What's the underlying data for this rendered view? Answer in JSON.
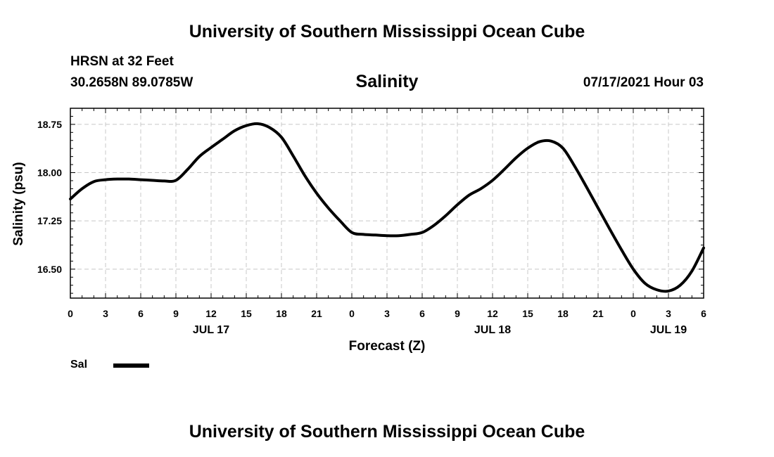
{
  "header": {
    "title": "University of Southern Mississippi Ocean Cube",
    "station": "HRSN at 32 Feet",
    "coordinates": "30.2658N  89.0785W",
    "plot_title": "Salinity",
    "timestamp": "07/17/2021 Hour 03"
  },
  "footer": {
    "title": "University of Southern Mississippi Ocean Cube"
  },
  "legend": {
    "label": "Sal"
  },
  "chart_data": {
    "type": "line",
    "title": "Salinity",
    "xlabel": "Forecast (Z)",
    "ylabel": "Salinity (psu)",
    "xlim": [
      0,
      54
    ],
    "ylim": [
      16.05,
      19.0
    ],
    "y_ticks": [
      16.5,
      17.25,
      18.0,
      18.75
    ],
    "y_tick_labels": [
      "16.50",
      "17.25",
      "18.00",
      "18.75"
    ],
    "x_ticks": [
      0,
      3,
      6,
      9,
      12,
      15,
      18,
      21,
      24,
      27,
      30,
      33,
      36,
      39,
      42,
      45,
      48,
      51,
      54
    ],
    "x_tick_labels": [
      "0",
      "3",
      "6",
      "9",
      "12",
      "15",
      "18",
      "21",
      "0",
      "3",
      "6",
      "9",
      "12",
      "15",
      "18",
      "21",
      "0",
      "3",
      "6"
    ],
    "date_labels": [
      {
        "hour": 12,
        "label": "JUL 17"
      },
      {
        "hour": 36,
        "label": "JUL 18"
      },
      {
        "hour": 51,
        "label": "JUL 19"
      }
    ],
    "grid": true,
    "line_color": "#000000",
    "series": [
      {
        "name": "Sal",
        "x": [
          0,
          1,
          2,
          3,
          4,
          5,
          6,
          7,
          8,
          9,
          10,
          11,
          12,
          13,
          14,
          15,
          16,
          17,
          18,
          19,
          20,
          21,
          22,
          23,
          24,
          25,
          26,
          27,
          28,
          29,
          30,
          31,
          32,
          33,
          34,
          35,
          36,
          37,
          38,
          39,
          40,
          41,
          42,
          43,
          44,
          45,
          46,
          47,
          48,
          49,
          50,
          51,
          52,
          53,
          54
        ],
        "y": [
          17.59,
          17.75,
          17.86,
          17.89,
          17.9,
          17.9,
          17.89,
          17.88,
          17.87,
          17.88,
          18.05,
          18.25,
          18.39,
          18.52,
          18.65,
          18.73,
          18.76,
          18.7,
          18.55,
          18.26,
          17.95,
          17.68,
          17.45,
          17.25,
          17.07,
          17.04,
          17.03,
          17.02,
          17.02,
          17.04,
          17.07,
          17.18,
          17.33,
          17.5,
          17.65,
          17.75,
          17.88,
          18.05,
          18.23,
          18.38,
          18.48,
          18.49,
          18.38,
          18.1,
          17.78,
          17.45,
          17.12,
          16.8,
          16.5,
          16.28,
          16.18,
          16.16,
          16.25,
          16.47,
          16.83
        ]
      }
    ]
  }
}
